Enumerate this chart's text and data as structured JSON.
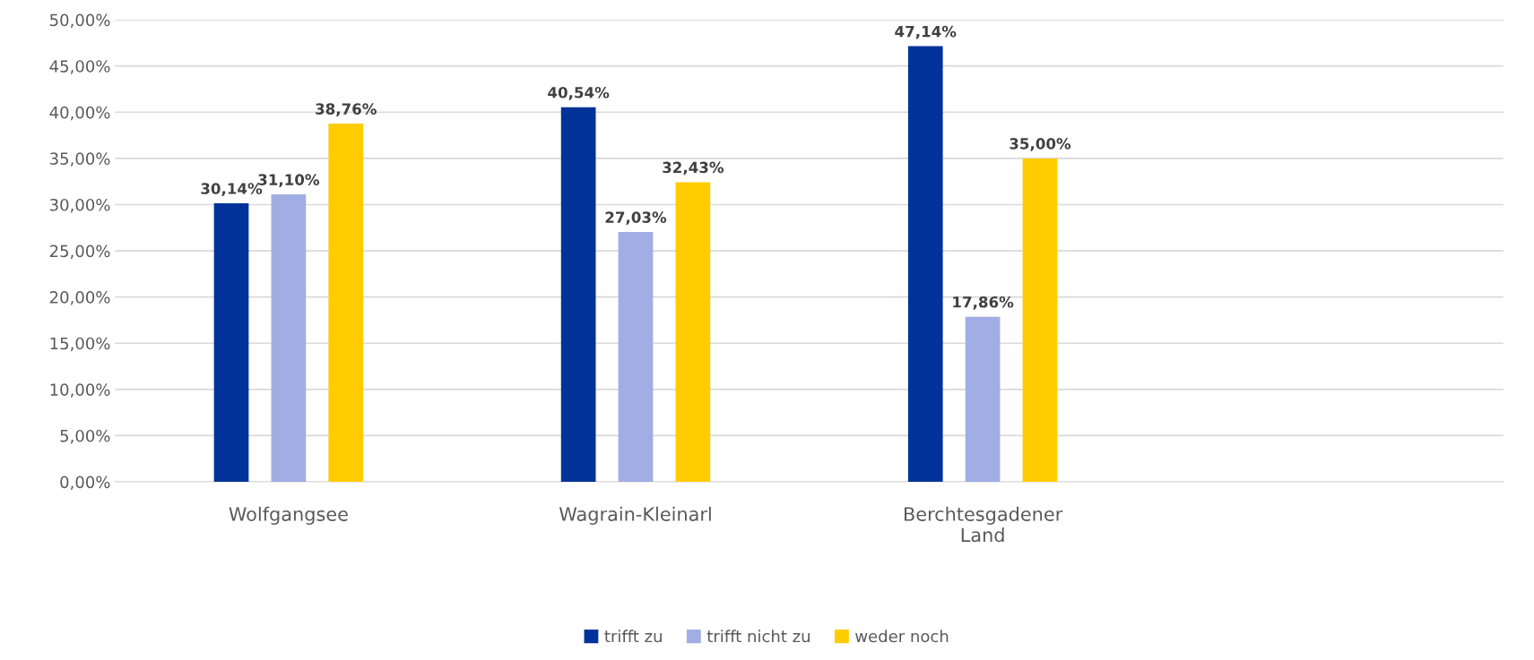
{
  "chart_data": {
    "type": "bar",
    "categories": [
      "Wolfgangsee",
      "Wagrain-Kleinarl",
      "Berchtesgadener\nLand",
      null
    ],
    "series": [
      {
        "name": "trifft zu",
        "color": "#003399",
        "values": [
          30.14,
          40.54,
          47.14,
          null
        ]
      },
      {
        "name": "trifft nicht zu",
        "color": "#a0aee3",
        "values": [
          31.1,
          27.03,
          17.86,
          null
        ]
      },
      {
        "name": "weder noch",
        "color": "#ffcc00",
        "values": [
          38.76,
          32.43,
          35.0,
          null
        ]
      }
    ],
    "ylim": [
      0,
      50
    ],
    "yticks": [
      {
        "value": 0,
        "label": "0,00%"
      },
      {
        "value": 5,
        "label": "5,00%"
      },
      {
        "value": 10,
        "label": "10,00%"
      },
      {
        "value": 15,
        "label": "15,00%"
      },
      {
        "value": 20,
        "label": "20,00%"
      },
      {
        "value": 25,
        "label": "25,00%"
      },
      {
        "value": 30,
        "label": "30,00%"
      },
      {
        "value": 35,
        "label": "35,00%"
      },
      {
        "value": 40,
        "label": "40,00%"
      },
      {
        "value": 45,
        "label": "45,00%"
      },
      {
        "value": 50,
        "label": "50,00%"
      }
    ],
    "value_labels": [
      [
        "30,14%",
        "40,54%",
        "47,14%",
        null
      ],
      [
        "31,10%",
        "27,03%",
        "17,86%",
        null
      ],
      [
        "38,76%",
        "32,43%",
        "35,00%",
        null
      ]
    ],
    "grid": "y",
    "legend": "bottom"
  }
}
